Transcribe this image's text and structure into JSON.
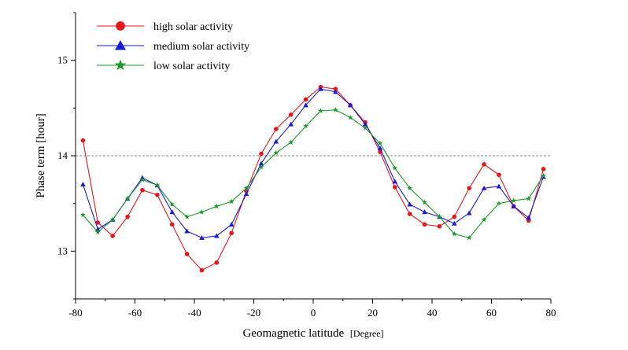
{
  "chart_data": {
    "type": "line",
    "xlabel": "Geomagnetic latitude",
    "xlabel_unit": "[Degree]",
    "ylabel": "Phase term [hour]",
    "xlim": [
      -80,
      80
    ],
    "ylim": [
      12.5,
      15.5
    ],
    "xticks": [
      "-80",
      "-60",
      "-40",
      "-20",
      "0",
      "20",
      "40",
      "60",
      "80"
    ],
    "yticks": [
      "13",
      "14",
      "15"
    ],
    "reference_line_y": 14,
    "legend_position": "top-left",
    "x": [
      -77.5,
      -72.5,
      -67.5,
      -62.5,
      -57.5,
      -52.5,
      -47.5,
      -42.5,
      -37.5,
      -32.5,
      -27.5,
      -22.5,
      -17.5,
      -12.5,
      -7.5,
      -2.5,
      2.5,
      7.5,
      12.5,
      17.5,
      22.5,
      27.5,
      32.5,
      37.5,
      42.5,
      47.5,
      52.5,
      57.5,
      62.5,
      67.5,
      72.5,
      77.5
    ],
    "series": [
      {
        "name": "high solar activity",
        "color": "#e8161b",
        "marker": "circle",
        "values": [
          14.16,
          13.3,
          13.16,
          13.36,
          13.64,
          13.59,
          13.28,
          12.97,
          12.8,
          12.88,
          13.19,
          13.63,
          14.02,
          14.28,
          14.43,
          14.59,
          14.72,
          14.7,
          14.53,
          14.35,
          14.04,
          13.67,
          13.39,
          13.28,
          13.26,
          13.36,
          13.66,
          13.91,
          13.8,
          13.47,
          13.32,
          13.86
        ]
      },
      {
        "name": "medium solar activity",
        "color": "#1b1bd6",
        "marker": "triangle",
        "values": [
          13.7,
          13.23,
          13.33,
          13.55,
          13.77,
          13.69,
          13.41,
          13.21,
          13.14,
          13.16,
          13.28,
          13.6,
          13.92,
          14.15,
          14.33,
          14.53,
          14.7,
          14.67,
          14.53,
          14.33,
          14.08,
          13.73,
          13.49,
          13.41,
          13.36,
          13.29,
          13.4,
          13.66,
          13.68,
          13.47,
          13.35,
          13.78
        ]
      },
      {
        "name": "low solar activity",
        "color": "#1a9a2a",
        "marker": "star",
        "values": [
          13.38,
          13.2,
          13.33,
          13.55,
          13.75,
          13.69,
          13.49,
          13.36,
          13.41,
          13.47,
          13.52,
          13.66,
          13.88,
          14.03,
          14.14,
          14.31,
          14.47,
          14.48,
          14.4,
          14.29,
          14.13,
          13.87,
          13.66,
          13.51,
          13.36,
          13.18,
          13.14,
          13.33,
          13.5,
          13.53,
          13.55,
          13.79
        ]
      }
    ]
  }
}
